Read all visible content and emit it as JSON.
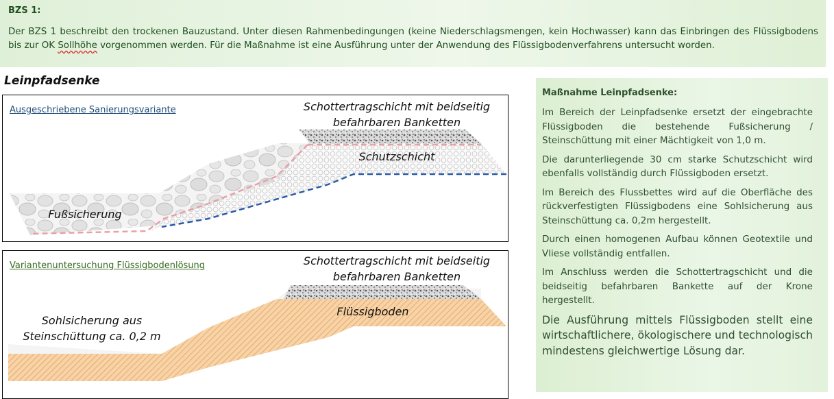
{
  "header": {
    "title": "BZS 1:",
    "text_before": "Der BZS 1 beschreibt den trockenen Bauzustand. Unter diesen Rahmenbedingungen (keine Niederschlagsmengen, kein Hochwasser) kann das Einbringen des Flüssigbodens bis zur OK ",
    "text_wavy": "Sollhöhe",
    "text_after": " vorgenommen werden. Für die Maßnahme ist eine Ausführung unter der Anwendung des Flüssigbodenverfahrens untersucht worden."
  },
  "section_title": "Leinpfadsenke",
  "diagram1": {
    "label": "Ausgeschriebene Sanierungsvariante",
    "top_line1": "Schottertragschicht mit beidseitig",
    "top_line2": "befahrbaren Banketten",
    "protect_label": "Schutzschicht",
    "foot_label": "Fußsicherung"
  },
  "diagram2": {
    "label": "Variantenuntersuchung Flüssigbodenlösung",
    "top_line1": "Schottertragschicht mit beidseitig",
    "top_line2": "befahrbaren Banketten",
    "soil_label": "Flüssigboden",
    "sohl_line1": "Sohlsicherung aus",
    "sohl_line2": "Steinschüttung ca. 0,2 m"
  },
  "panel": {
    "title": "Maßnahme Leinpfadsenke:",
    "paragraphs": [
      "Im Bereich der Leinpfadsenke ersetzt der eingebrachte Flüssigboden die bestehende Fußsicherung / Steinschüttung mit einer Mächtigkeit von 1,0 m.",
      "Die darunterliegende 30 cm starke Schutzschicht wird ebenfalls vollständig durch Flüssigboden ersetzt.",
      "Im Bereich des Flussbettes wird auf die Oberfläche des rückverfestigten Flüssigbodens eine Sohlsicherung aus Steinschüttung ca. 0,2m hergestellt.",
      "Durch einen homogenen Aufbau können Geotextile und Vliese vollständig entfallen.",
      "Im Anschluss werden die Schottertragschicht und die beidseitig befahrbaren Bankette auf der Krone hergestellt."
    ],
    "conclusion": "Die Ausführung mittels Flüssigboden stellt eine wirtschaftlichere, ökologischere und technologisch mindestens gleichwertige Lösung dar."
  },
  "colors": {
    "banner_bg": "#dff0d8",
    "panel_bg": "#e3f2dc",
    "text_green": "#2f4f2f",
    "liquid_soil": "#f2c48f",
    "dashed_pink": "#e8a0a8",
    "dashed_blue": "#2a5aa8"
  }
}
